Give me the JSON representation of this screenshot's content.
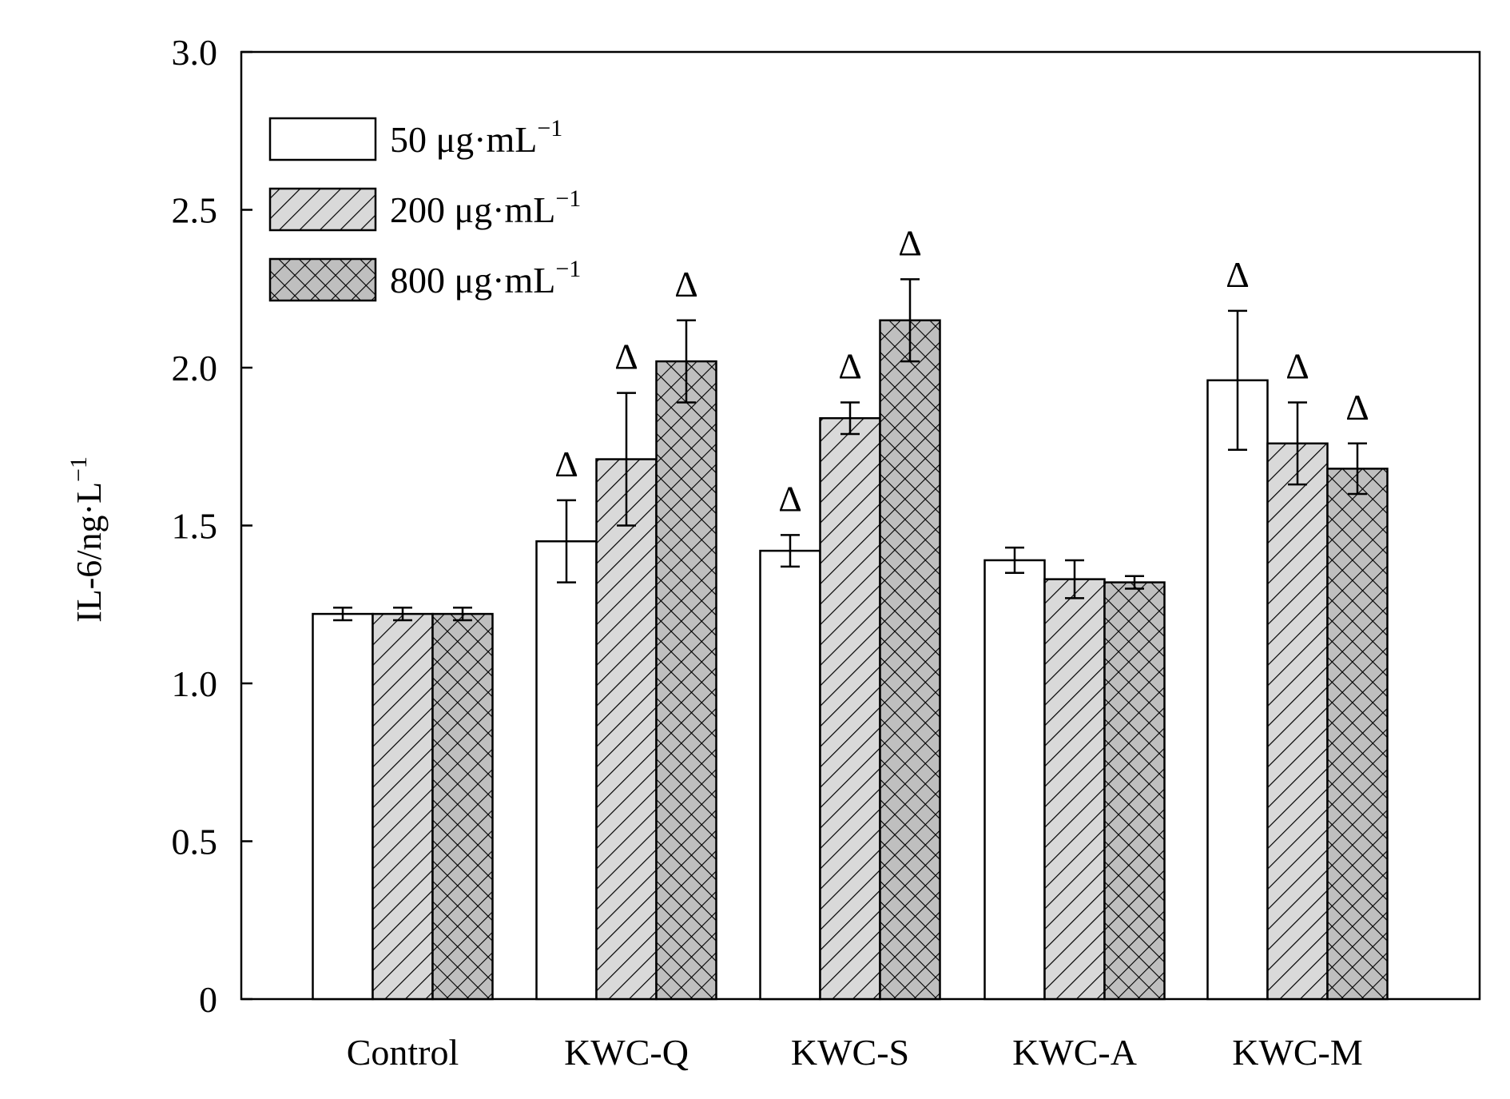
{
  "chart_data": {
    "type": "bar",
    "title": "",
    "xlabel": "",
    "ylabel_base": "IL-6/ng·L",
    "ylabel_sup": "−1",
    "ylim": [
      0,
      3.0
    ],
    "yticks": [
      0,
      0.5,
      1.0,
      1.5,
      2.0,
      2.5,
      3.0
    ],
    "ytick_labels": [
      "0",
      "0.5",
      "1.0",
      "1.5",
      "2.0",
      "2.5",
      "3.0"
    ],
    "categories": [
      "Control",
      "KWC-Q",
      "KWC-S",
      "KWC-A",
      "KWC-M"
    ],
    "grid": false,
    "legend_position": "top-left",
    "significance_marker": "Δ",
    "series": [
      {
        "name_base": "50 μg·mL",
        "name_sup": "−1",
        "fill": "#ffffff",
        "pattern": "none",
        "values": [
          1.22,
          1.45,
          1.42,
          1.39,
          1.96
        ],
        "errors": [
          0.02,
          0.13,
          0.05,
          0.04,
          0.22
        ],
        "significant": [
          false,
          true,
          true,
          false,
          true
        ]
      },
      {
        "name_base": "200 μg·mL",
        "name_sup": "−1",
        "fill": "#d9d9d9",
        "pattern": "diagonal",
        "values": [
          1.22,
          1.71,
          1.84,
          1.33,
          1.76
        ],
        "errors": [
          0.02,
          0.21,
          0.05,
          0.06,
          0.13
        ],
        "significant": [
          false,
          true,
          true,
          false,
          true
        ]
      },
      {
        "name_base": "800 μg·mL",
        "name_sup": "−1",
        "fill": "#bfbfbf",
        "pattern": "crosshatch",
        "values": [
          1.22,
          2.02,
          2.15,
          1.32,
          1.68
        ],
        "errors": [
          0.02,
          0.13,
          0.13,
          0.02,
          0.08
        ],
        "significant": [
          false,
          true,
          true,
          false,
          true
        ]
      }
    ]
  }
}
